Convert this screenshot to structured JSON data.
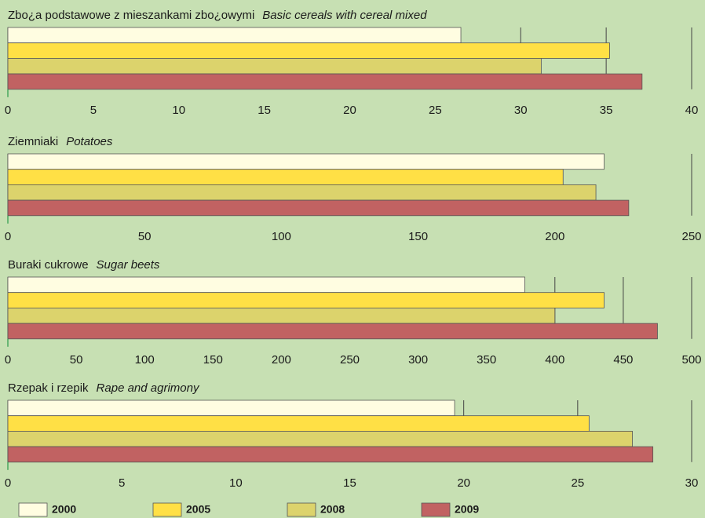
{
  "legend": {
    "series": [
      {
        "name": "2000",
        "color": "#fffde1"
      },
      {
        "name": "2005",
        "color": "#ffe045"
      },
      {
        "name": "2008",
        "color": "#dcd36c"
      },
      {
        "name": "2009",
        "color": "#c16262"
      }
    ]
  },
  "chart_data": [
    {
      "type": "bar",
      "title": "Zbo¿a podstawowe z mieszankami zbo¿owymi",
      "subtitle": "Basic cereals with cereal mixed",
      "values": [
        26.5,
        35.2,
        31.2,
        37.1
      ],
      "xlim": [
        0,
        40
      ],
      "xticks": [
        0,
        5,
        10,
        15,
        20,
        25,
        30,
        35,
        40
      ],
      "grid": true
    },
    {
      "type": "bar",
      "title": "Ziemniaki",
      "subtitle": "Potatoes",
      "values": [
        218,
        203,
        215,
        227
      ],
      "xlim": [
        0,
        250
      ],
      "xticks": [
        0,
        50,
        100,
        150,
        200,
        250
      ],
      "grid": true
    },
    {
      "type": "bar",
      "title": "Buraki cukrowe",
      "subtitle": "Sugar beets",
      "values": [
        378,
        436,
        400,
        475
      ],
      "xlim": [
        0,
        500
      ],
      "xticks": [
        0,
        50,
        100,
        150,
        200,
        250,
        300,
        350,
        400,
        450,
        500
      ],
      "grid": true
    },
    {
      "type": "bar",
      "title": "Rzepak i rzepik",
      "subtitle": "Rape and agrimony",
      "values": [
        19.6,
        25.5,
        27.4,
        28.3
      ],
      "xlim": [
        0,
        30
      ],
      "xticks": [
        0,
        5,
        10,
        15,
        20,
        25,
        30
      ],
      "grid": true
    }
  ]
}
